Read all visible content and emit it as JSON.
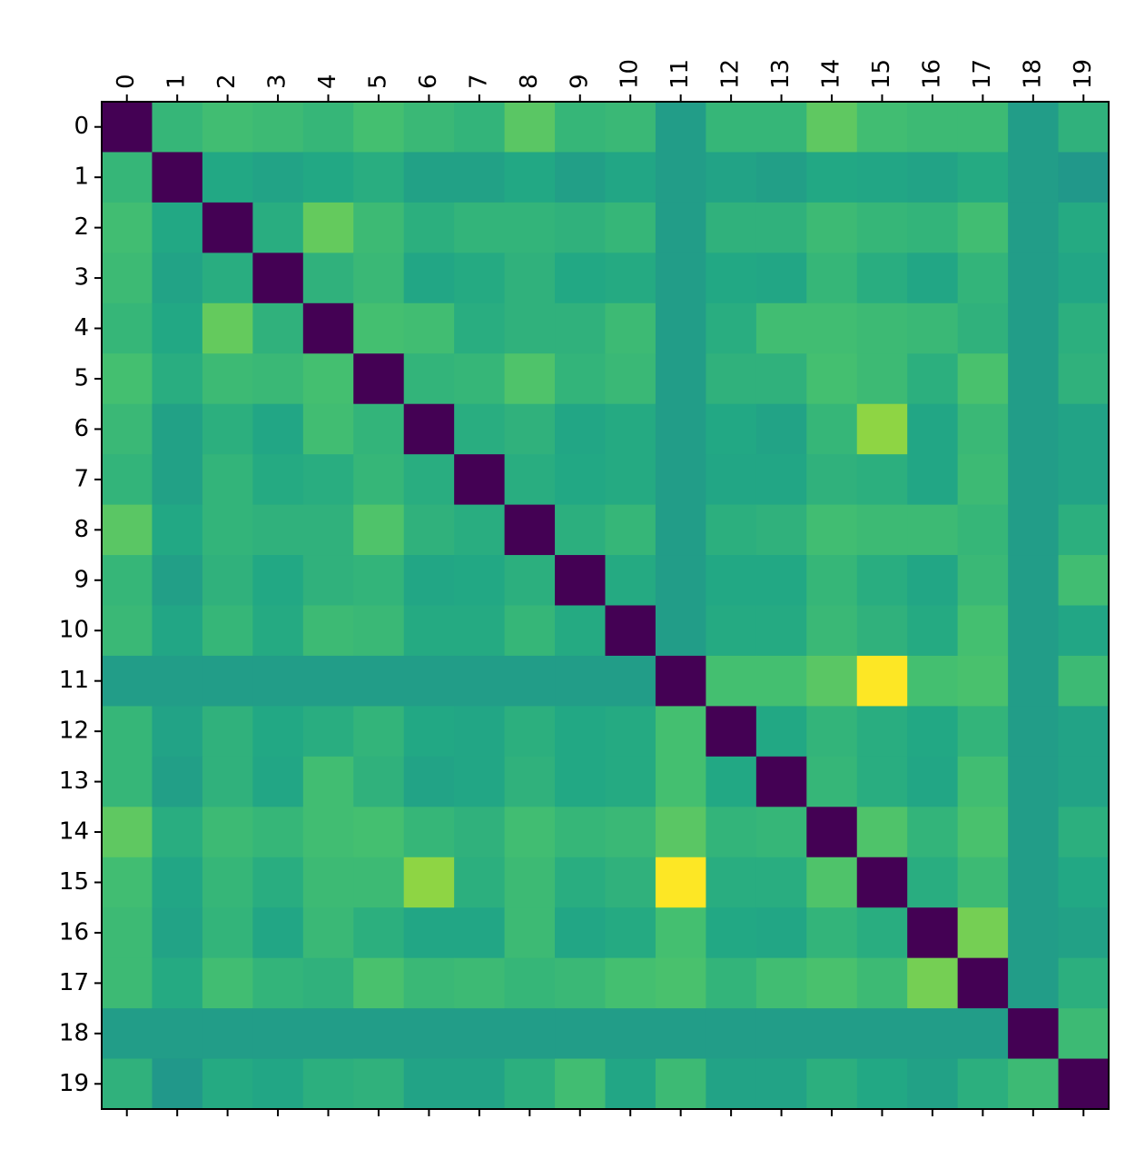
{
  "chart_data": {
    "type": "heatmap",
    "colormap": "viridis",
    "xticks": [
      0,
      1,
      2,
      3,
      4,
      5,
      6,
      7,
      8,
      9,
      10,
      11,
      12,
      13,
      14,
      15,
      16,
      17,
      18,
      19
    ],
    "yticks": [
      0,
      1,
      2,
      3,
      4,
      5,
      6,
      7,
      8,
      9,
      10,
      11,
      12,
      13,
      14,
      15,
      16,
      17,
      18,
      19
    ],
    "values": [
      [
        0,
        0.66,
        0.69,
        0.68,
        0.66,
        0.7,
        0.67,
        0.65,
        0.74,
        0.66,
        0.67,
        0.55,
        0.66,
        0.66,
        0.75,
        0.69,
        0.68,
        0.68,
        0.55,
        0.64
      ],
      [
        0.66,
        0,
        0.6,
        0.58,
        0.6,
        0.62,
        0.57,
        0.57,
        0.6,
        0.56,
        0.59,
        0.55,
        0.58,
        0.56,
        0.6,
        0.59,
        0.58,
        0.61,
        0.55,
        0.53
      ],
      [
        0.69,
        0.6,
        0,
        0.62,
        0.76,
        0.68,
        0.63,
        0.65,
        0.65,
        0.64,
        0.66,
        0.55,
        0.64,
        0.64,
        0.68,
        0.66,
        0.65,
        0.69,
        0.55,
        0.61
      ],
      [
        0.68,
        0.58,
        0.62,
        0,
        0.64,
        0.67,
        0.59,
        0.61,
        0.64,
        0.6,
        0.61,
        0.55,
        0.6,
        0.59,
        0.66,
        0.62,
        0.59,
        0.65,
        0.55,
        0.59
      ],
      [
        0.66,
        0.6,
        0.76,
        0.64,
        0,
        0.7,
        0.69,
        0.62,
        0.64,
        0.64,
        0.68,
        0.55,
        0.62,
        0.69,
        0.69,
        0.68,
        0.67,
        0.64,
        0.55,
        0.63
      ],
      [
        0.7,
        0.62,
        0.68,
        0.67,
        0.7,
        0,
        0.65,
        0.66,
        0.72,
        0.65,
        0.67,
        0.55,
        0.64,
        0.64,
        0.7,
        0.68,
        0.63,
        0.71,
        0.55,
        0.64
      ],
      [
        0.67,
        0.57,
        0.63,
        0.59,
        0.69,
        0.65,
        0,
        0.62,
        0.64,
        0.59,
        0.61,
        0.55,
        0.6,
        0.58,
        0.66,
        0.83,
        0.59,
        0.67,
        0.55,
        0.58
      ],
      [
        0.65,
        0.57,
        0.65,
        0.61,
        0.62,
        0.66,
        0.62,
        0,
        0.62,
        0.6,
        0.61,
        0.55,
        0.59,
        0.59,
        0.64,
        0.63,
        0.59,
        0.68,
        0.55,
        0.58
      ],
      [
        0.74,
        0.6,
        0.65,
        0.64,
        0.64,
        0.72,
        0.64,
        0.62,
        0,
        0.63,
        0.66,
        0.55,
        0.63,
        0.64,
        0.69,
        0.68,
        0.68,
        0.66,
        0.55,
        0.63
      ],
      [
        0.66,
        0.56,
        0.64,
        0.6,
        0.64,
        0.65,
        0.59,
        0.6,
        0.63,
        0,
        0.61,
        0.55,
        0.6,
        0.6,
        0.66,
        0.62,
        0.59,
        0.67,
        0.55,
        0.69
      ],
      [
        0.67,
        0.59,
        0.66,
        0.61,
        0.68,
        0.67,
        0.61,
        0.61,
        0.66,
        0.61,
        0,
        0.55,
        0.61,
        0.61,
        0.67,
        0.64,
        0.61,
        0.7,
        0.55,
        0.59
      ],
      [
        0.55,
        0.55,
        0.55,
        0.55,
        0.55,
        0.55,
        0.55,
        0.55,
        0.55,
        0.55,
        0.55,
        0,
        0.7,
        0.7,
        0.74,
        1,
        0.7,
        0.71,
        0.55,
        0.68
      ],
      [
        0.66,
        0.58,
        0.64,
        0.6,
        0.62,
        0.65,
        0.6,
        0.59,
        0.63,
        0.6,
        0.61,
        0.7,
        0,
        0.6,
        0.65,
        0.62,
        0.6,
        0.65,
        0.55,
        0.58
      ],
      [
        0.66,
        0.56,
        0.64,
        0.59,
        0.69,
        0.64,
        0.58,
        0.59,
        0.64,
        0.6,
        0.61,
        0.7,
        0.6,
        0,
        0.66,
        0.62,
        0.59,
        0.69,
        0.55,
        0.58
      ],
      [
        0.75,
        0.62,
        0.68,
        0.66,
        0.69,
        0.7,
        0.66,
        0.64,
        0.69,
        0.66,
        0.67,
        0.74,
        0.65,
        0.66,
        0,
        0.72,
        0.65,
        0.71,
        0.55,
        0.63
      ],
      [
        0.69,
        0.59,
        0.66,
        0.62,
        0.68,
        0.68,
        0.83,
        0.63,
        0.68,
        0.62,
        0.64,
        1,
        0.62,
        0.62,
        0.72,
        0,
        0.62,
        0.68,
        0.55,
        0.6
      ],
      [
        0.68,
        0.58,
        0.65,
        0.59,
        0.67,
        0.63,
        0.59,
        0.59,
        0.68,
        0.59,
        0.61,
        0.7,
        0.6,
        0.59,
        0.65,
        0.62,
        0,
        0.79,
        0.55,
        0.57
      ],
      [
        0.68,
        0.61,
        0.69,
        0.65,
        0.64,
        0.71,
        0.67,
        0.68,
        0.66,
        0.67,
        0.7,
        0.71,
        0.65,
        0.69,
        0.71,
        0.68,
        0.79,
        0,
        0.55,
        0.63
      ],
      [
        0.55,
        0.55,
        0.55,
        0.55,
        0.55,
        0.55,
        0.55,
        0.55,
        0.55,
        0.55,
        0.55,
        0.55,
        0.55,
        0.55,
        0.55,
        0.55,
        0.55,
        0.55,
        0,
        0.68
      ],
      [
        0.64,
        0.53,
        0.61,
        0.59,
        0.63,
        0.64,
        0.58,
        0.58,
        0.63,
        0.69,
        0.59,
        0.68,
        0.58,
        0.58,
        0.63,
        0.6,
        0.57,
        0.63,
        0.68,
        0
      ]
    ]
  }
}
